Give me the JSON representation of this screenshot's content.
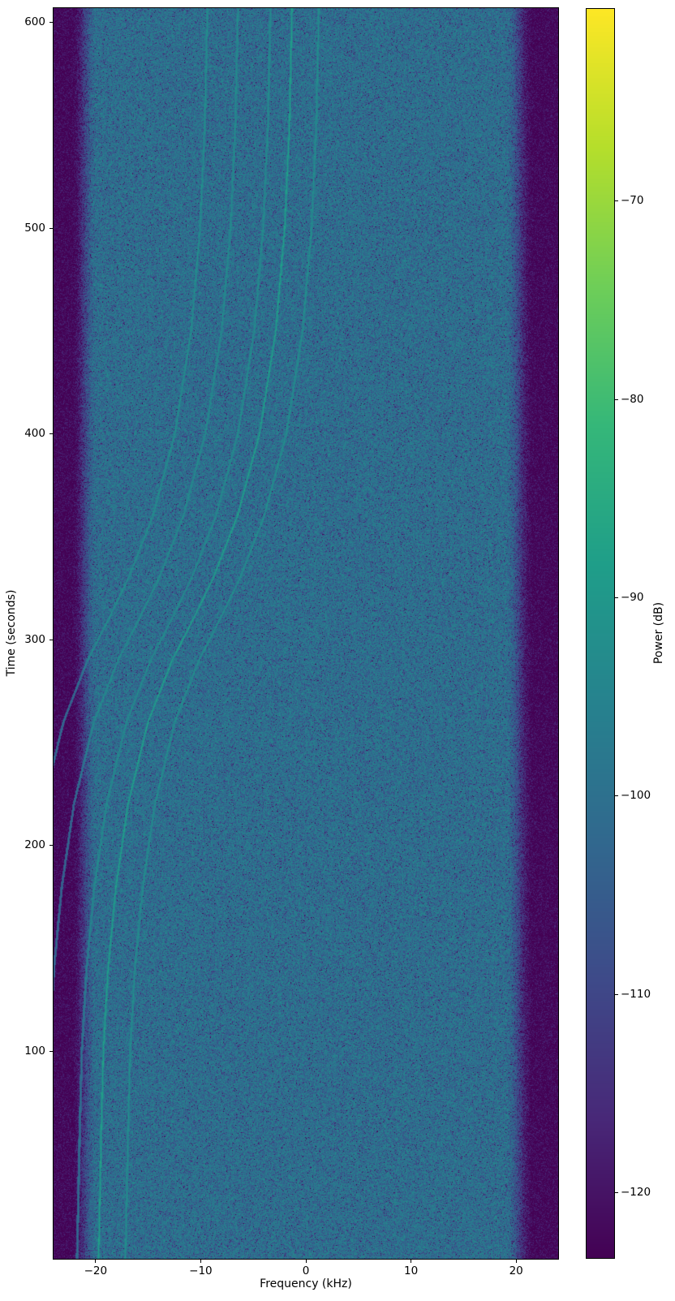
{
  "chart_data": {
    "type": "heatmap",
    "subtype": "spectrogram",
    "title": "",
    "xlabel": "Frequency (kHz)",
    "ylabel": "Time (seconds)",
    "x_range": [
      -24,
      24
    ],
    "x_ticks": [
      -20,
      -10,
      0,
      10,
      20
    ],
    "x_tick_labels": [
      "−20",
      "−10",
      "0",
      "10",
      "20"
    ],
    "y_range": [
      -1,
      607
    ],
    "y_ticks": [
      600,
      500,
      400,
      300,
      200,
      100
    ],
    "y_tick_labels": [
      "600",
      "500",
      "400",
      "300",
      "200",
      "100"
    ],
    "grid": false,
    "colorbar": {
      "label": "Power (dB)",
      "colormap": "viridis",
      "vmin": -123.3,
      "vmax": -60.3,
      "ticks": [
        -70,
        -80,
        -90,
        -100,
        -110,
        -120
      ],
      "tick_labels": [
        "−70",
        "−80",
        "−90",
        "−100",
        "−110",
        "−120"
      ]
    },
    "noise_floor_db": -98.6,
    "band_edges_khz": {
      "left_full": -22.3,
      "left_start": -19.9,
      "right_start": 19.0,
      "right_full": 21.7
    },
    "edge_atten_db": 23,
    "doppler_shift_points": [
      [
        0,
        -18.4
      ],
      [
        60,
        -18.15
      ],
      [
        100,
        -17.95
      ],
      [
        140,
        -17.5
      ],
      [
        180,
        -16.75
      ],
      [
        220,
        -15.6
      ],
      [
        260,
        -13.7
      ],
      [
        290,
        -11.4
      ],
      [
        310,
        -9.4
      ],
      [
        330,
        -7.5
      ],
      [
        360,
        -5.2
      ],
      [
        400,
        -3.1
      ],
      [
        450,
        -1.55
      ],
      [
        500,
        -0.7
      ],
      [
        550,
        -0.25
      ],
      [
        607,
        0
      ]
    ],
    "tracks": [
      {
        "f_top_khz": -9.4,
        "boost_db": 5.5
      },
      {
        "f_top_khz": -6.5,
        "boost_db": 5.0
      },
      {
        "f_top_khz": -3.4,
        "boost_db": 5.0
      },
      {
        "f_top_khz": -1.35,
        "boost_db": 10.0
      },
      {
        "f_top_khz": 1.2,
        "boost_db": 5.5
      }
    ],
    "viridis_stops": [
      "#440154",
      "#482878",
      "#3e4a89",
      "#31688e",
      "#26828e",
      "#1f9e89",
      "#35b779",
      "#6ece58",
      "#b5de2b",
      "#fde725"
    ],
    "background_color": "#ffffff",
    "text_color": "#000000"
  }
}
